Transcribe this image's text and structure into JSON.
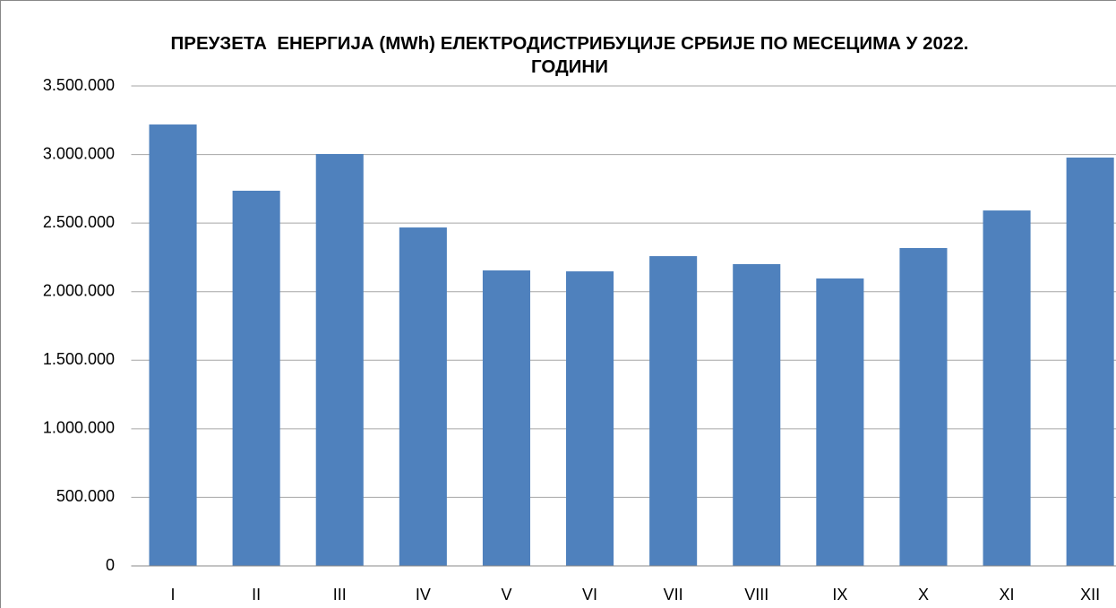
{
  "chart_data": {
    "type": "bar",
    "title": "ПРЕУЗЕТА  ЕНЕРГИЈА (MWh) ЕЛЕКТРОДИСТРИБУЦИЈЕ СРБИЈЕ ПО МЕСЕЦИМА У 2022. ГОДИНИ",
    "categories": [
      "I",
      "II",
      "III",
      "IV",
      "V",
      "VI",
      "VII",
      "VIII",
      "IX",
      "X",
      "XI",
      "XII"
    ],
    "values": [
      3219000,
      2736000,
      3004000,
      2468000,
      2155000,
      2148000,
      2259000,
      2201000,
      2096000,
      2318000,
      2592000,
      2978000
    ],
    "color": "#4f81bd",
    "ylim": [
      0,
      3500000
    ],
    "yticks": [
      0,
      {
        "value": 500000,
        "label": "500.000"
      },
      {
        "value": 1000000,
        "label": "1.000.000"
      },
      {
        "value": 1500000,
        "label": "1.500.000"
      },
      {
        "value": 2000000,
        "label": "2.000.000"
      },
      {
        "value": 2500000,
        "label": "2.500.000"
      },
      {
        "value": 3000000,
        "label": "3.000.000"
      },
      {
        "value": 3500000,
        "label": "3.500.000"
      }
    ],
    "grid": true
  }
}
